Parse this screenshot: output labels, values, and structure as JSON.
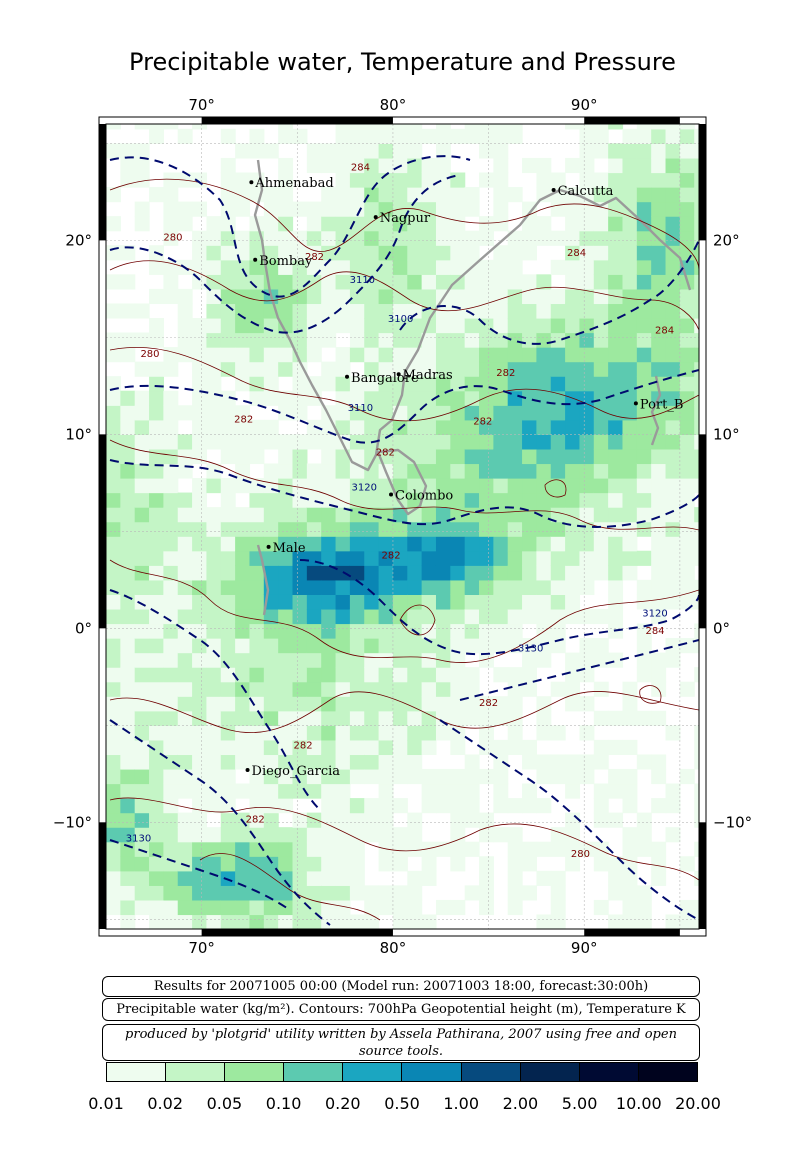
{
  "title": "Precipitable water, Temperature and Pressure",
  "map": {
    "lon_range": [
      65,
      96
    ],
    "lat_range": [
      -15.5,
      26
    ],
    "lon_ticks": [
      70,
      80,
      90
    ],
    "lat_ticks": [
      20,
      10,
      0,
      -10
    ],
    "lon_tick_labels": [
      "70°",
      "80°",
      "90°"
    ],
    "lat_tick_labels": [
      "20°",
      "10°",
      "0°",
      "−10°"
    ],
    "grid": true,
    "colors": {
      "coast": "#9a9a9a",
      "geopotential_contour": "#000a6e",
      "temperature_contour": "#6e0000",
      "frame": "#000000"
    },
    "cities": [
      {
        "name": "Ahmenabad",
        "lon": 72.6,
        "lat": 23.0
      },
      {
        "name": "Nagpur",
        "lon": 79.1,
        "lat": 21.2
      },
      {
        "name": "Calcutta",
        "lon": 88.4,
        "lat": 22.6
      },
      {
        "name": "Bombay",
        "lon": 72.8,
        "lat": 19.0
      },
      {
        "name": "Bangalore",
        "lon": 77.6,
        "lat": 12.97
      },
      {
        "name": "Madras",
        "lon": 80.3,
        "lat": 13.1
      },
      {
        "name": "Port_B",
        "lon": 92.7,
        "lat": 11.6
      },
      {
        "name": "Colombo",
        "lon": 79.9,
        "lat": 6.9
      },
      {
        "name": "Male",
        "lon": 73.5,
        "lat": 4.2
      },
      {
        "name": "Diego_Garcia",
        "lon": 72.4,
        "lat": -7.3
      }
    ],
    "geopotential_labels": [
      {
        "text": "3110",
        "lon": 78.4,
        "lat": 17.8
      },
      {
        "text": "3100",
        "lon": 80.4,
        "lat": 15.8
      },
      {
        "text": "3110",
        "lon": 78.3,
        "lat": 11.2
      },
      {
        "text": "3120",
        "lon": 78.5,
        "lat": 7.1
      },
      {
        "text": "3130",
        "lon": 87.2,
        "lat": -1.2
      },
      {
        "text": "3120",
        "lon": 93.7,
        "lat": 0.6
      },
      {
        "text": "3130",
        "lon": 66.7,
        "lat": -11.0
      }
    ],
    "temperature_labels": [
      {
        "text": "284",
        "lon": 78.3,
        "lat": 23.6
      },
      {
        "text": "280",
        "lon": 68.5,
        "lat": 20.0
      },
      {
        "text": "282",
        "lon": 75.9,
        "lat": 19.0
      },
      {
        "text": "284",
        "lon": 89.6,
        "lat": 19.2
      },
      {
        "text": "280",
        "lon": 67.3,
        "lat": 14.0
      },
      {
        "text": "282",
        "lon": 85.9,
        "lat": 13.0
      },
      {
        "text": "284",
        "lon": 94.2,
        "lat": 15.2
      },
      {
        "text": "282",
        "lon": 72.2,
        "lat": 10.6
      },
      {
        "text": "282",
        "lon": 84.7,
        "lat": 10.5
      },
      {
        "text": "282",
        "lon": 79.6,
        "lat": 8.9
      },
      {
        "text": "282",
        "lon": 79.9,
        "lat": 3.6
      },
      {
        "text": "284",
        "lon": 93.7,
        "lat": -0.3
      },
      {
        "text": "282",
        "lon": 85.0,
        "lat": -4.0
      },
      {
        "text": "282",
        "lon": 75.3,
        "lat": -6.2
      },
      {
        "text": "282",
        "lon": 72.8,
        "lat": -10.0
      },
      {
        "text": "280",
        "lon": 89.8,
        "lat": -11.8
      }
    ]
  },
  "info": {
    "results": "Results for 20071005 00:00 (Model run: 20071003 18:00, forecast:30:00h)",
    "units": "Precipitable water (kg/m²).  Contours: 700hPa Geopotential height (m), Temperature K",
    "credit": "produced by 'plotgrid' utility written by Assela Pathirana, 2007 using free and open source tools."
  },
  "legend": {
    "labels": [
      "0.01",
      "0.02",
      "0.05",
      "0.10",
      "0.20",
      "0.50",
      "1.00",
      "2.00",
      "5.00",
      "10.00",
      "20.00"
    ],
    "colors": [
      "#eefcef",
      "#c4f5c6",
      "#9de99f",
      "#5ccab0",
      "#1ba6c1",
      "#0a86b4",
      "#064a7e",
      "#03244f",
      "#000a33",
      "#00031e"
    ]
  }
}
